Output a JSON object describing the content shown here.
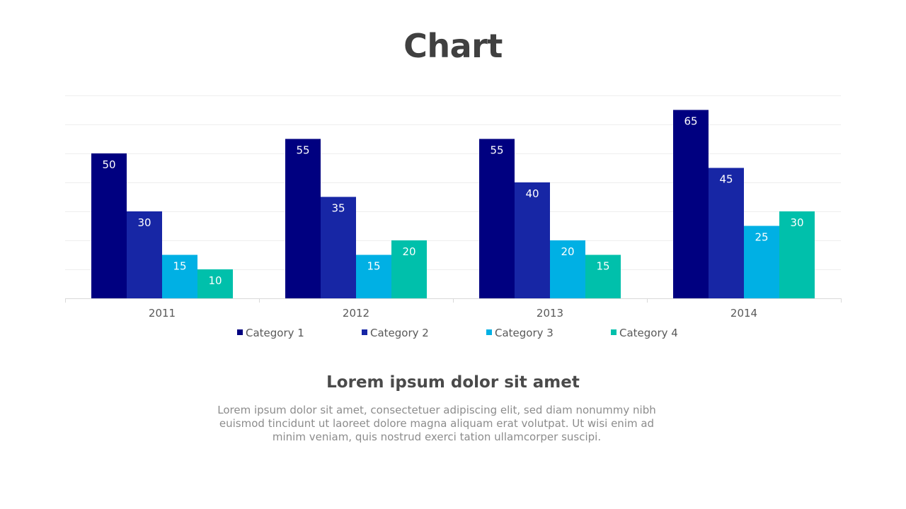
{
  "slide": {
    "title": "Chart",
    "subtitle": "Lorem ipsum dolor sit amet",
    "body": "Lorem ipsum dolor sit amet, consectetuer adipiscing elit, sed diam nonummy nibh euismod tincidunt ut laoreet dolore magna aliquam erat volutpat. Ut wisi enim ad minim veniam, quis nostrud exerci tation ullamcorper suscipi."
  },
  "chart_data": {
    "type": "bar",
    "title": "",
    "xlabel": "",
    "ylabel": "",
    "categories": [
      "2011",
      "2012",
      "2013",
      "2014"
    ],
    "series": [
      {
        "name": "Category 1",
        "color": "#000080",
        "values": [
          50,
          55,
          55,
          65
        ]
      },
      {
        "name": "Category 2",
        "color": "#1726A5",
        "values": [
          30,
          35,
          40,
          45
        ]
      },
      {
        "name": "Category 3",
        "color": "#00B0E4",
        "values": [
          15,
          15,
          20,
          25
        ]
      },
      {
        "name": "Category 4",
        "color": "#00C0AB",
        "values": [
          10,
          20,
          15,
          30
        ]
      }
    ],
    "ylim": [
      0,
      70
    ],
    "grid": true,
    "gridStep": 10,
    "legend": "bottom",
    "dataLabels": true,
    "dataLabelColor": "#ffffff",
    "tickLabelColor": "#595959",
    "gridColor": "#EEEEEE",
    "axisColor": "#D9D9D9"
  }
}
